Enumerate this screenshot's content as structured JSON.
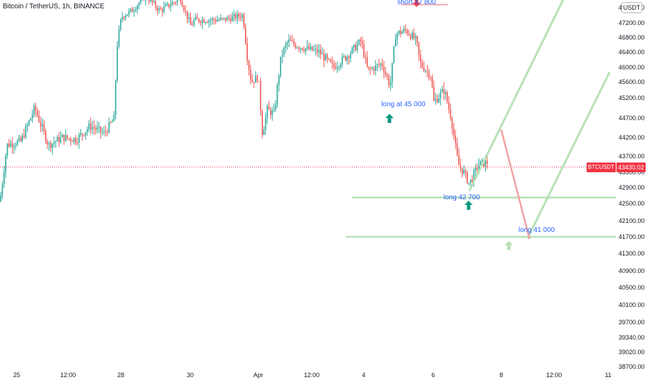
{
  "header": {
    "title": "Bitcoin / TetherUS, 1h, BINANCE",
    "currency": "USDT"
  },
  "last_price": {
    "ticker": "BTCUSDT",
    "value": "43430.02"
  },
  "annotations": [
    {
      "name": "short-47800-label",
      "text": "short 47 800"
    },
    {
      "name": "long-45000-label",
      "text": "long at 45 000"
    },
    {
      "name": "long-42700-label",
      "text": "long 42 700"
    },
    {
      "name": "long-41000-label",
      "text": "long 41 000"
    }
  ],
  "colors": {
    "up": "#26a69a",
    "down": "#ef5350",
    "annotation_text": "#2962ff",
    "projection_green": "#b7e1b5",
    "projection_red": "#f2a0a0",
    "last_price": "#f23645"
  },
  "chart_data": {
    "type": "candlestick",
    "timeframe": "1h",
    "y_tick_labels": [
      "47700.00",
      "47200.00",
      "46800.00",
      "46400.00",
      "46000.00",
      "45600.00",
      "45200.00",
      "44700.00",
      "44200.00",
      "43700.00",
      "43300.00",
      "42900.00",
      "42500.00",
      "42100.00",
      "41700.00",
      "41300.00",
      "40900.00",
      "40500.00",
      "40100.00",
      "39700.00",
      "39340.00",
      "39020.00",
      "38700.00"
    ],
    "y_ticks": [
      47700,
      47200,
      46800,
      46400,
      46000,
      45600,
      45200,
      44700,
      44200,
      43700,
      43300,
      42900,
      42500,
      42100,
      41700,
      41300,
      40900,
      40500,
      40100,
      39700,
      39340,
      39020,
      38700
    ],
    "x_tick_labels": [
      "25",
      "12:00",
      "28",
      "30",
      "Apr",
      "12:00",
      "4",
      "6",
      "8",
      "12:00",
      "11"
    ],
    "last_price_value": 43430.02,
    "price_path": [
      [
        0,
        42550
      ],
      [
        10,
        44000
      ],
      [
        30,
        44100
      ],
      [
        50,
        44950
      ],
      [
        70,
        44000
      ],
      [
        90,
        44200
      ],
      [
        110,
        44150
      ],
      [
        130,
        44500
      ],
      [
        150,
        44300
      ],
      [
        165,
        44700
      ],
      [
        168,
        46500
      ],
      [
        175,
        47400
      ],
      [
        190,
        47600
      ],
      [
        210,
        48100
      ],
      [
        230,
        47600
      ],
      [
        260,
        48000
      ],
      [
        275,
        47100
      ],
      [
        280,
        47300
      ],
      [
        300,
        47300
      ],
      [
        320,
        47300
      ],
      [
        350,
        47450
      ],
      [
        356,
        46300
      ],
      [
        362,
        45600
      ],
      [
        372,
        45750
      ],
      [
        378,
        44300
      ],
      [
        385,
        44900
      ],
      [
        395,
        44800
      ],
      [
        405,
        46300
      ],
      [
        415,
        46700
      ],
      [
        425,
        46600
      ],
      [
        440,
        46500
      ],
      [
        460,
        46400
      ],
      [
        480,
        46000
      ],
      [
        500,
        46300
      ],
      [
        520,
        46700
      ],
      [
        530,
        45900
      ],
      [
        550,
        46100
      ],
      [
        562,
        45500
      ],
      [
        570,
        46900
      ],
      [
        585,
        47000
      ],
      [
        600,
        46700
      ],
      [
        605,
        46100
      ],
      [
        620,
        45800
      ],
      [
        625,
        45100
      ],
      [
        640,
        45400
      ],
      [
        650,
        44700
      ],
      [
        660,
        43500
      ],
      [
        668,
        43300
      ],
      [
        676,
        43000
      ],
      [
        690,
        43500
      ],
      [
        703,
        43550
      ]
    ],
    "horizontal_levels": [
      {
        "price": 42650,
        "style": "support"
      },
      {
        "price": 41700,
        "style": "support"
      },
      {
        "price": 47800,
        "style": "resistance"
      }
    ],
    "projected_path": [
      {
        "time_fraction": 0.814,
        "price": 44400
      },
      {
        "time_fraction": 0.86,
        "price": 41650
      }
    ]
  }
}
